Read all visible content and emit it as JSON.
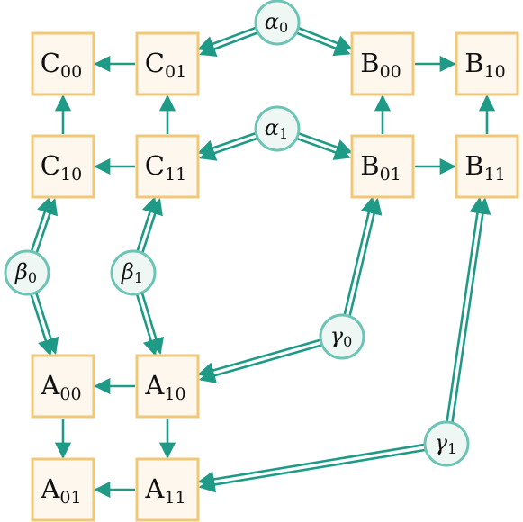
{
  "boxes": {
    "C00": {
      "letter": "C",
      "sub": "00"
    },
    "C01": {
      "letter": "C",
      "sub": "01"
    },
    "B00": {
      "letter": "B",
      "sub": "00"
    },
    "B10": {
      "letter": "B",
      "sub": "10"
    },
    "C10": {
      "letter": "C",
      "sub": "10"
    },
    "C11": {
      "letter": "C",
      "sub": "11"
    },
    "B01": {
      "letter": "B",
      "sub": "01"
    },
    "B11": {
      "letter": "B",
      "sub": "11"
    },
    "A00": {
      "letter": "A",
      "sub": "00"
    },
    "A10": {
      "letter": "A",
      "sub": "10"
    },
    "A01": {
      "letter": "A",
      "sub": "01"
    },
    "A11": {
      "letter": "A",
      "sub": "11"
    }
  },
  "nodes": {
    "alpha0": {
      "letter": "α",
      "sub": "0"
    },
    "alpha1": {
      "letter": "α",
      "sub": "1"
    },
    "beta0": {
      "letter": "β",
      "sub": "0"
    },
    "beta1": {
      "letter": "β",
      "sub": "1"
    },
    "gamma0": {
      "letter": "γ",
      "sub": "0"
    },
    "gamma1": {
      "letter": "γ",
      "sub": "1"
    }
  },
  "edges": [
    [
      "C01",
      "C00"
    ],
    [
      "B00",
      "B10"
    ],
    [
      "C11",
      "C10"
    ],
    [
      "B01",
      "B11"
    ],
    [
      "C10",
      "C00"
    ],
    [
      "C11",
      "C01"
    ],
    [
      "B01",
      "B00"
    ],
    [
      "B11",
      "B10"
    ],
    [
      "A00",
      "A01"
    ],
    [
      "A10",
      "A11"
    ],
    [
      "A10",
      "A00"
    ],
    [
      "A11",
      "A01"
    ]
  ],
  "cross_edges": [
    {
      "from": "alpha0",
      "pair": [
        "C01",
        "B00"
      ]
    },
    {
      "from": "alpha1",
      "pair": [
        "C11",
        "B01"
      ]
    },
    {
      "from": "beta0",
      "pair": [
        "C10",
        "A00"
      ]
    },
    {
      "from": "beta1",
      "pair": [
        "C11",
        "A10"
      ]
    },
    {
      "from": "gamma0",
      "pair": [
        "A10",
        "B01"
      ]
    },
    {
      "from": "gamma1",
      "pair": [
        "A11",
        "B11"
      ]
    }
  ],
  "colors": {
    "edge": "#1f9a86",
    "box_fill": "#fdf7ee",
    "box_stroke": "#f0c878",
    "node_fill": "#eef7f4",
    "node_stroke": "#6cc4b5"
  }
}
